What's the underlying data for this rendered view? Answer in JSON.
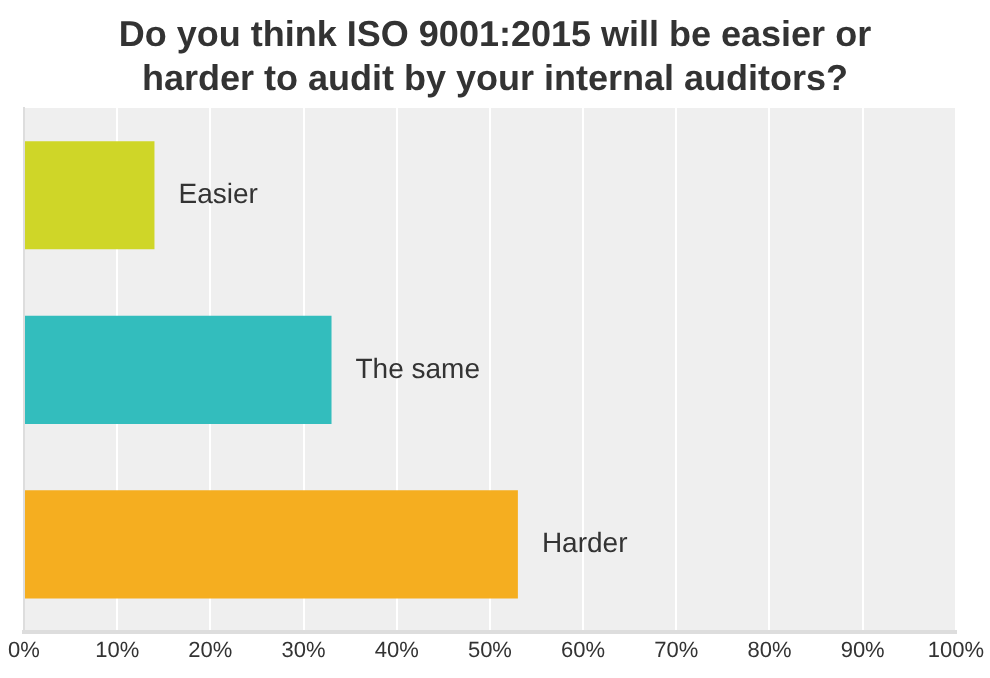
{
  "chart_data": {
    "type": "bar",
    "orientation": "horizontal",
    "title": "Do you think ISO 9001:2015 will be easier or harder to audit by your internal auditors?",
    "categories": [
      "Easier",
      "The same",
      "Harder"
    ],
    "values": [
      14,
      33,
      53
    ],
    "colors": [
      "#cfd628",
      "#33bdbd",
      "#f5ae20"
    ],
    "xlim": [
      0,
      100
    ],
    "xticks": [
      {
        "value": 0,
        "label": "0%"
      },
      {
        "value": 10,
        "label": "10%"
      },
      {
        "value": 20,
        "label": "20%"
      },
      {
        "value": 30,
        "label": "30%"
      },
      {
        "value": 40,
        "label": "40%"
      },
      {
        "value": 50,
        "label": "50%"
      },
      {
        "value": 60,
        "label": "60%"
      },
      {
        "value": 70,
        "label": "70%"
      },
      {
        "value": 80,
        "label": "80%"
      },
      {
        "value": 90,
        "label": "90%"
      },
      {
        "value": 100,
        "label": "100%"
      }
    ],
    "grid": "x",
    "legend": false,
    "tick_labels": "x"
  }
}
